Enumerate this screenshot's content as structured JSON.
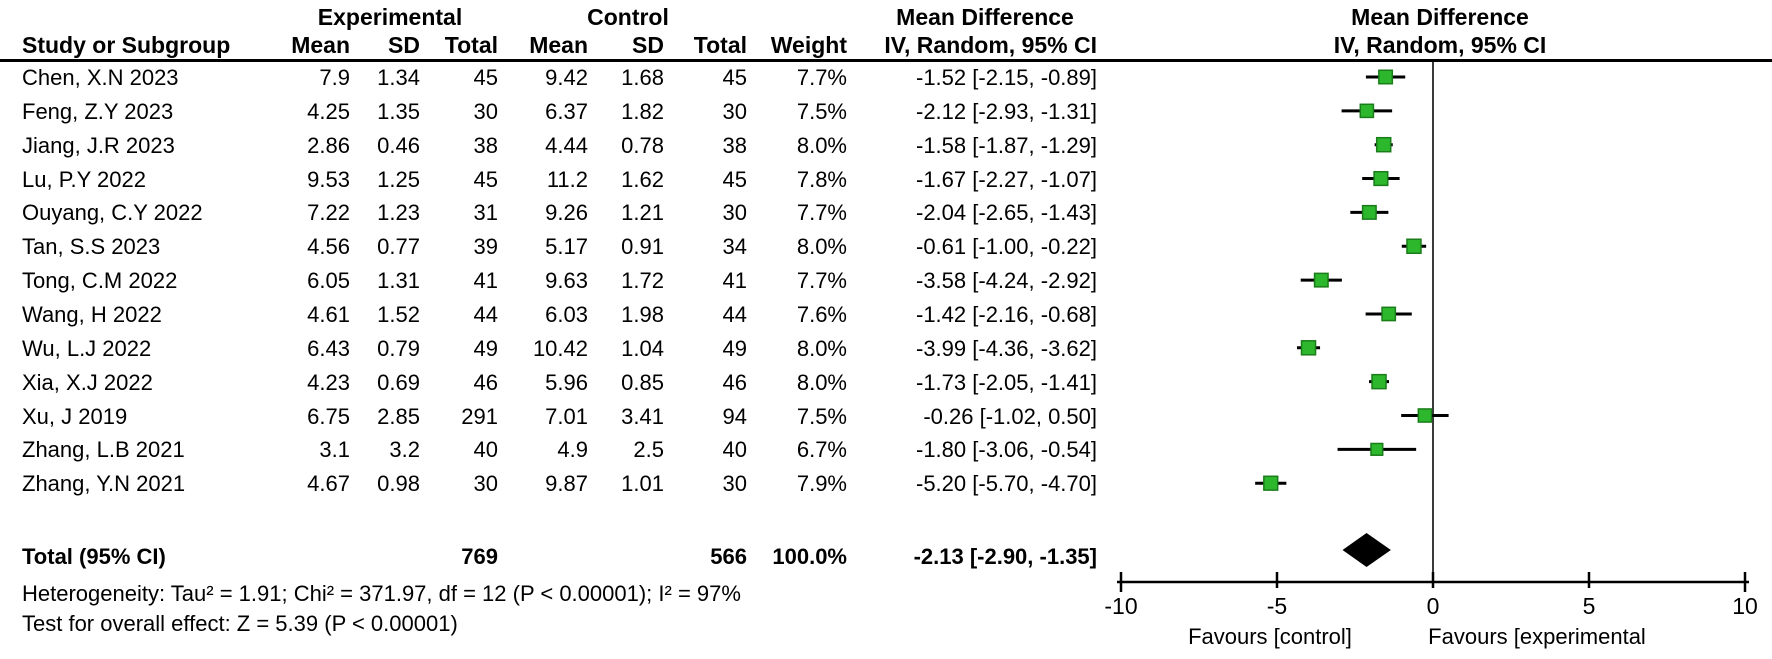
{
  "group_header": {
    "experimental": "Experimental",
    "control": "Control",
    "mean_difference_text": "Mean Difference",
    "mean_difference_plot": "Mean Difference"
  },
  "header": {
    "study": "Study or Subgroup",
    "mean": "Mean",
    "sd": "SD",
    "total": "Total",
    "weight": "Weight",
    "ci": "IV, Random, 95% CI",
    "ci_plot": "IV, Random, 95% CI"
  },
  "chart_data": {
    "type": "forest",
    "effect_measure": "Mean Difference, IV, Random, 95% CI",
    "marker_color": "#2DB72D",
    "marker_edge_color": "#1A7D1A",
    "line_color": "#000000",
    "studies": [
      {
        "name": "Chen, X.N 2023",
        "e_mean": "7.9",
        "e_sd": "1.34",
        "e_total": "45",
        "c_mean": "9.42",
        "c_sd": "1.68",
        "c_total": "45",
        "weight": "7.7%",
        "ci": "-1.52 [-2.15, -0.89]",
        "md": -1.52,
        "lo": -2.15,
        "hi": -0.89,
        "w": 7.7
      },
      {
        "name": "Feng, Z.Y 2023",
        "e_mean": "4.25",
        "e_sd": "1.35",
        "e_total": "30",
        "c_mean": "6.37",
        "c_sd": "1.82",
        "c_total": "30",
        "weight": "7.5%",
        "ci": "-2.12 [-2.93, -1.31]",
        "md": -2.12,
        "lo": -2.93,
        "hi": -1.31,
        "w": 7.5
      },
      {
        "name": "Jiang, J.R 2023",
        "e_mean": "2.86",
        "e_sd": "0.46",
        "e_total": "38",
        "c_mean": "4.44",
        "c_sd": "0.78",
        "c_total": "38",
        "weight": "8.0%",
        "ci": "-1.58 [-1.87, -1.29]",
        "md": -1.58,
        "lo": -1.87,
        "hi": -1.29,
        "w": 8.0
      },
      {
        "name": "Lu, P.Y 2022",
        "e_mean": "9.53",
        "e_sd": "1.25",
        "e_total": "45",
        "c_mean": "11.2",
        "c_sd": "1.62",
        "c_total": "45",
        "weight": "7.8%",
        "ci": "-1.67 [-2.27, -1.07]",
        "md": -1.67,
        "lo": -2.27,
        "hi": -1.07,
        "w": 7.8
      },
      {
        "name": "Ouyang, C.Y 2022",
        "e_mean": "7.22",
        "e_sd": "1.23",
        "e_total": "31",
        "c_mean": "9.26",
        "c_sd": "1.21",
        "c_total": "30",
        "weight": "7.7%",
        "ci": "-2.04 [-2.65, -1.43]",
        "md": -2.04,
        "lo": -2.65,
        "hi": -1.43,
        "w": 7.7
      },
      {
        "name": "Tan, S.S 2023",
        "e_mean": "4.56",
        "e_sd": "0.77",
        "e_total": "39",
        "c_mean": "5.17",
        "c_sd": "0.91",
        "c_total": "34",
        "weight": "8.0%",
        "ci": "-0.61 [-1.00, -0.22]",
        "md": -0.61,
        "lo": -1.0,
        "hi": -0.22,
        "w": 8.0
      },
      {
        "name": "Tong, C.M 2022",
        "e_mean": "6.05",
        "e_sd": "1.31",
        "e_total": "41",
        "c_mean": "9.63",
        "c_sd": "1.72",
        "c_total": "41",
        "weight": "7.7%",
        "ci": "-3.58 [-4.24, -2.92]",
        "md": -3.58,
        "lo": -4.24,
        "hi": -2.92,
        "w": 7.7
      },
      {
        "name": "Wang, H 2022",
        "e_mean": "4.61",
        "e_sd": "1.52",
        "e_total": "44",
        "c_mean": "6.03",
        "c_sd": "1.98",
        "c_total": "44",
        "weight": "7.6%",
        "ci": "-1.42 [-2.16, -0.68]",
        "md": -1.42,
        "lo": -2.16,
        "hi": -0.68,
        "w": 7.6
      },
      {
        "name": "Wu, L.J 2022",
        "e_mean": "6.43",
        "e_sd": "0.79",
        "e_total": "49",
        "c_mean": "10.42",
        "c_sd": "1.04",
        "c_total": "49",
        "weight": "8.0%",
        "ci": "-3.99 [-4.36, -3.62]",
        "md": -3.99,
        "lo": -4.36,
        "hi": -3.62,
        "w": 8.0
      },
      {
        "name": "Xia, X.J 2022",
        "e_mean": "4.23",
        "e_sd": "0.69",
        "e_total": "46",
        "c_mean": "5.96",
        "c_sd": "0.85",
        "c_total": "46",
        "weight": "8.0%",
        "ci": "-1.73 [-2.05, -1.41]",
        "md": -1.73,
        "lo": -2.05,
        "hi": -1.41,
        "w": 8.0
      },
      {
        "name": "Xu, J 2019",
        "e_mean": "6.75",
        "e_sd": "2.85",
        "e_total": "291",
        "c_mean": "7.01",
        "c_sd": "3.41",
        "c_total": "94",
        "weight": "7.5%",
        "ci": "-0.26 [-1.02, 0.50]",
        "md": -0.26,
        "lo": -1.02,
        "hi": 0.5,
        "w": 7.5
      },
      {
        "name": "Zhang, L.B 2021",
        "e_mean": "3.1",
        "e_sd": "3.2",
        "e_total": "40",
        "c_mean": "4.9",
        "c_sd": "2.5",
        "c_total": "40",
        "weight": "6.7%",
        "ci": "-1.80 [-3.06, -0.54]",
        "md": -1.8,
        "lo": -3.06,
        "hi": -0.54,
        "w": 6.7
      },
      {
        "name": "Zhang, Y.N 2021",
        "e_mean": "4.67",
        "e_sd": "0.98",
        "e_total": "30",
        "c_mean": "9.87",
        "c_sd": "1.01",
        "c_total": "30",
        "weight": "7.9%",
        "ci": "-5.20 [-5.70, -4.70]",
        "md": -5.2,
        "lo": -5.7,
        "hi": -4.7,
        "w": 7.9
      }
    ],
    "total": {
      "label": "Total (95% CI)",
      "e_total": "769",
      "c_total": "566",
      "weight": "100.0%",
      "ci": "-2.13 [-2.90, -1.35]",
      "md": -2.13,
      "lo": -2.9,
      "hi": -1.35
    },
    "heterogeneity": "Heterogeneity: Tau² = 1.91; Chi² = 371.97, df = 12 (P < 0.00001); I² = 97%",
    "overall_effect": "Test for overall effect: Z = 5.39 (P < 0.00001)",
    "axis": {
      "xlim": [
        -10,
        10
      ],
      "ticks": [
        "-10",
        "-5",
        "0",
        "5",
        "10"
      ],
      "tick_values": [
        -10,
        -5,
        0,
        5,
        10
      ],
      "favours_left": "Favours [control]",
      "favours_right": "Favours [experimental"
    }
  }
}
